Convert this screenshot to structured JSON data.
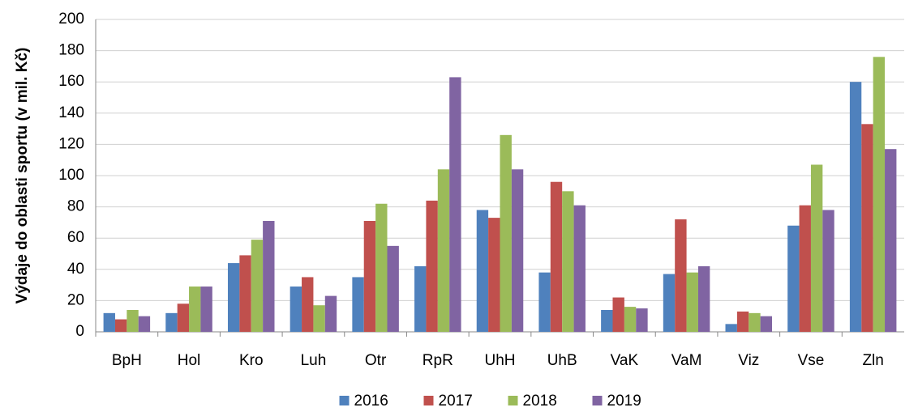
{
  "chart_data": {
    "type": "bar",
    "y_label": "Výdaje do oblasti sportu (v mil. Kč)",
    "categories": [
      "BpH",
      "Hol",
      "Kro",
      "Luh",
      "Otr",
      "RpR",
      "UhH",
      "UhB",
      "VaK",
      "VaM",
      "Viz",
      "Vse",
      "Zln"
    ],
    "series": [
      {
        "name": "2016",
        "color": "#4f81bd",
        "values": [
          12,
          12,
          44,
          29,
          35,
          42,
          78,
          38,
          14,
          37,
          5,
          68,
          160
        ]
      },
      {
        "name": "2017",
        "color": "#c0504d",
        "values": [
          8,
          18,
          49,
          35,
          71,
          84,
          73,
          96,
          22,
          72,
          13,
          81,
          133
        ]
      },
      {
        "name": "2018",
        "color": "#9bbb59",
        "values": [
          14,
          29,
          59,
          17,
          82,
          104,
          126,
          90,
          16,
          38,
          12,
          107,
          176
        ]
      },
      {
        "name": "2019",
        "color": "#8064a2",
        "values": [
          10,
          29,
          71,
          23,
          55,
          163,
          104,
          81,
          15,
          42,
          10,
          78,
          117
        ]
      }
    ],
    "ylim": [
      0,
      200
    ],
    "yticks": [
      0,
      20,
      40,
      60,
      80,
      100,
      120,
      140,
      160,
      180,
      200
    ],
    "grid": true,
    "legend": "bottom"
  }
}
